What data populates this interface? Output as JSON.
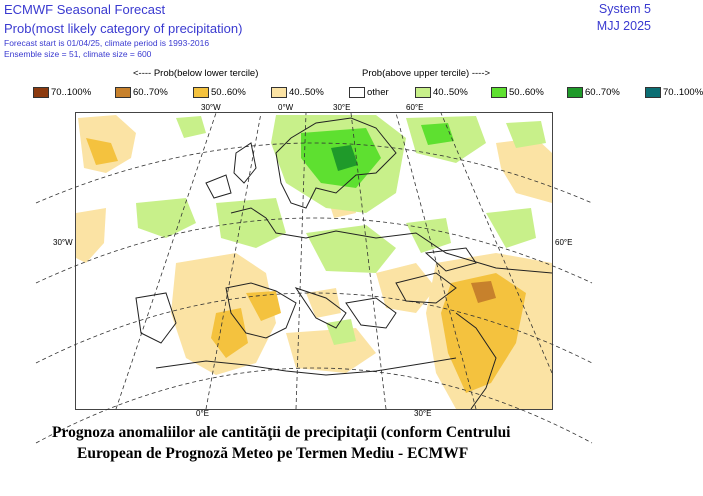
{
  "header": {
    "title": "ECMWF Seasonal Forecast",
    "subtitle": "Prob(most likely category of precipitation)",
    "forecast_line": "Forecast start is 01/04/25, climate period is 1993-2016",
    "ensemble_line": "Ensemble size = 51, climate size = 600",
    "system": "System 5",
    "period": "MJJ 2025"
  },
  "legend": {
    "below_label": "<---- Prob(below lower tercile)",
    "above_label": "Prob(above upper tercile) ---->",
    "items": [
      {
        "label": "70..100%",
        "color": "#8c3a0f"
      },
      {
        "label": "60..70%",
        "color": "#c7812c"
      },
      {
        "label": "50..60%",
        "color": "#f4c23e"
      },
      {
        "label": "40..50%",
        "color": "#fbe3a4"
      },
      {
        "label": "other",
        "color": "#ffffff"
      },
      {
        "label": "40..50%",
        "color": "#c8f08a"
      },
      {
        "label": "50..60%",
        "color": "#5ee030"
      },
      {
        "label": "60..70%",
        "color": "#1f9a2a"
      },
      {
        "label": "70..100%",
        "color": "#0b6e73"
      }
    ]
  },
  "map": {
    "lon_labels_top": [
      "30°W",
      "0°W",
      "30°E",
      "60°E"
    ],
    "lon_labels_bottom": [
      "0°E",
      "30°E"
    ],
    "lat_label_left": "30°W",
    "lat_label_right": "60°E"
  },
  "caption": {
    "line1": "Prognoza anomaliilor ale cantităţii de precipitaţii (conform Centrului",
    "line2": "European de Prognoză Meteo pe Termen Mediu - ECMWF"
  }
}
